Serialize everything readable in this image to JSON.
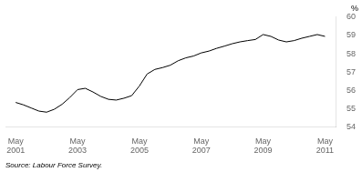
{
  "chart_data": {
    "type": "line",
    "ylabel": "%",
    "source": "Source: Labour Force Survey.",
    "color": "#000000",
    "grid": false,
    "xlim": [
      2001.0,
      2011.7
    ],
    "xticks": [
      {
        "value": 2001.33,
        "label": "May\n2001"
      },
      {
        "value": 2003.33,
        "label": "May\n2003"
      },
      {
        "value": 2005.33,
        "label": "May\n2005"
      },
      {
        "value": 2007.33,
        "label": "May\n2007"
      },
      {
        "value": 2009.33,
        "label": "May\n2009"
      },
      {
        "value": 2011.33,
        "label": "May\n2011"
      }
    ],
    "ylim": [
      54,
      60
    ],
    "yticks": [
      54,
      55,
      56,
      57,
      58,
      59,
      60
    ],
    "x": [
      2001.33,
      2001.58,
      2001.83,
      2002.08,
      2002.33,
      2002.58,
      2002.83,
      2003.08,
      2003.33,
      2003.58,
      2003.83,
      2004.08,
      2004.33,
      2004.58,
      2004.83,
      2005.08,
      2005.33,
      2005.58,
      2005.83,
      2006.08,
      2006.33,
      2006.58,
      2006.83,
      2007.08,
      2007.33,
      2007.58,
      2007.83,
      2008.08,
      2008.33,
      2008.58,
      2008.83,
      2009.08,
      2009.33,
      2009.58,
      2009.83,
      2010.08,
      2010.33,
      2010.58,
      2010.83,
      2011.08,
      2011.33
    ],
    "values": [
      55.35,
      55.22,
      55.05,
      54.88,
      54.82,
      54.98,
      55.25,
      55.62,
      56.05,
      56.12,
      55.92,
      55.68,
      55.52,
      55.48,
      55.58,
      55.72,
      56.25,
      56.9,
      57.15,
      57.25,
      57.38,
      57.62,
      57.78,
      57.88,
      58.05,
      58.15,
      58.3,
      58.42,
      58.55,
      58.65,
      58.72,
      58.78,
      59.05,
      58.95,
      58.75,
      58.65,
      58.72,
      58.85,
      58.95,
      59.05,
      58.95
    ]
  }
}
